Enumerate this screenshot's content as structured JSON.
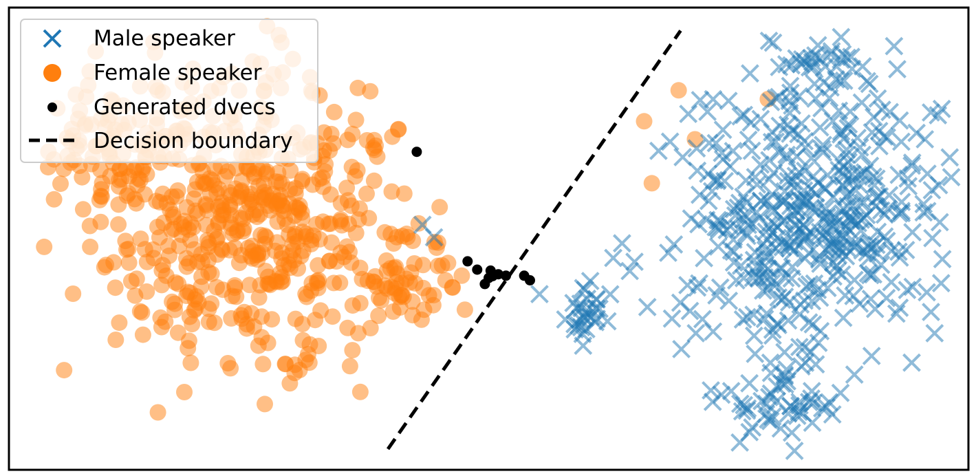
{
  "chart_data": {
    "type": "scatter",
    "title": "",
    "xlabel": "",
    "ylabel": "",
    "xlim": [
      0,
      100
    ],
    "ylim": [
      0,
      100
    ],
    "axes_ticks": false,
    "grid": false,
    "legend_position": "top-left",
    "colors": {
      "male": "#1f77b4",
      "female": "#ff7f0e",
      "generated": "#000000",
      "boundary": "#000000"
    },
    "boundary": {
      "name": "Decision boundary",
      "style": "dashed",
      "points": [
        [
          39.5,
          4.5
        ],
        [
          70.0,
          95.0
        ]
      ]
    },
    "generated": {
      "name": "Generated dvecs",
      "points": [
        [
          42.5,
          68.8
        ],
        [
          47.8,
          45.1
        ],
        [
          48.8,
          43.3
        ],
        [
          50.2,
          43.1
        ],
        [
          50.0,
          41.5
        ],
        [
          51.0,
          42.3
        ],
        [
          51.8,
          42.0
        ],
        [
          53.7,
          42.0
        ],
        [
          54.3,
          41.0
        ],
        [
          49.6,
          40.2
        ],
        [
          50.4,
          41.9
        ]
      ]
    },
    "male_clusters": [
      {
        "cx": 84.0,
        "cy": 54.0,
        "sx": 7.0,
        "sy": 14.0,
        "n": 430
      },
      {
        "cx": 85.5,
        "cy": 86.0,
        "sx": 4.0,
        "sy": 4.0,
        "n": 40
      },
      {
        "cx": 80.5,
        "cy": 15.0,
        "sx": 3.0,
        "sy": 6.0,
        "n": 55
      },
      {
        "cx": 59.8,
        "cy": 33.0,
        "sx": 1.4,
        "sy": 3.5,
        "n": 30
      }
    ],
    "male_extra": [
      [
        43.1,
        53.0
      ],
      [
        44.3,
        50.3
      ],
      [
        55.3,
        38.0
      ],
      [
        63.9,
        49.0
      ],
      [
        64.7,
        43.0
      ],
      [
        65.2,
        45.0
      ],
      [
        67.7,
        69.0
      ],
      [
        68.9,
        71.0
      ],
      [
        70.8,
        77.0
      ]
    ],
    "female_clusters": [
      {
        "cx": 24.5,
        "cy": 55.0,
        "sx": 8.0,
        "sy": 16.0,
        "n": 520
      },
      {
        "cx": 12.0,
        "cy": 70.0,
        "sx": 4.5,
        "sy": 6.0,
        "n": 70
      },
      {
        "cx": 41.0,
        "cy": 41.0,
        "sx": 2.6,
        "sy": 4.5,
        "n": 55
      }
    ],
    "female_extra": [
      [
        42.7,
        53.3
      ],
      [
        66.2,
        75.4
      ],
      [
        69.8,
        82.1
      ],
      [
        71.5,
        71.5
      ],
      [
        79.1,
        80.2
      ],
      [
        67.0,
        62.0
      ],
      [
        40.6,
        73.7
      ],
      [
        47.2,
        42.0
      ],
      [
        45.5,
        41.0
      ],
      [
        46.2,
        39.5
      ]
    ],
    "male_seed": 7,
    "female_seed": 13
  },
  "legend": {
    "male_label": "Male speaker",
    "female_label": "Female speaker",
    "generated_label": "Generated dvecs",
    "boundary_label": "Decision boundary"
  }
}
